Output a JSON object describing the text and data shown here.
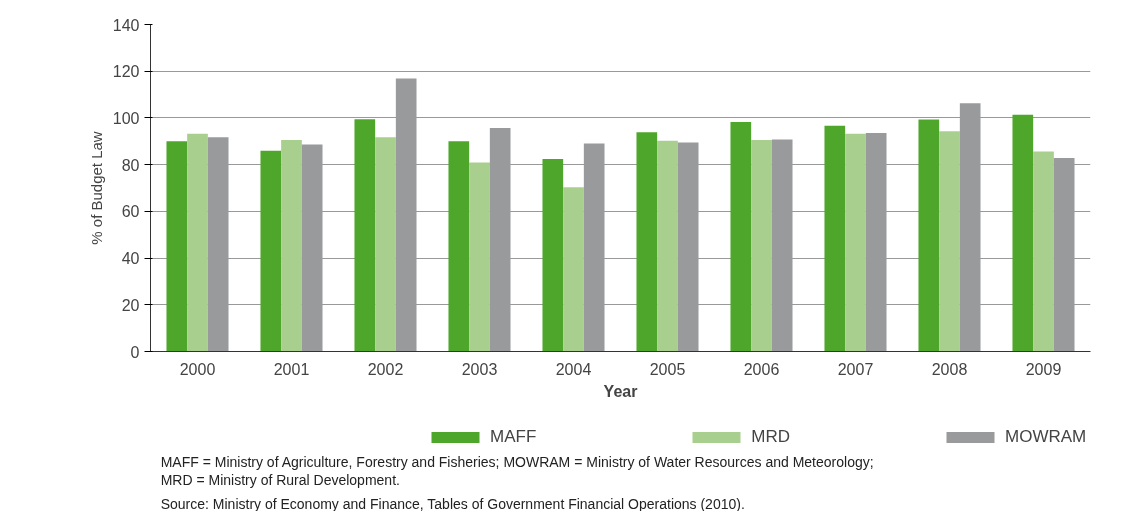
{
  "chart_data": {
    "type": "bar",
    "xlabel": "Year",
    "ylabel": "% of Budget Law",
    "categories": [
      "2000",
      "2001",
      "2002",
      "2003",
      "2004",
      "2005",
      "2006",
      "2007",
      "2008",
      "2009"
    ],
    "series": [
      {
        "name": "MAFF",
        "color": "#4ea72a",
        "values": [
          90,
          86,
          99.4,
          90,
          82.4,
          93.9,
          98.3,
          96.6,
          99.3,
          101.4
        ]
      },
      {
        "name": "MRD",
        "color": "#a8cf8e",
        "values": [
          93.2,
          90.5,
          91.7,
          80.9,
          70.3,
          90.2,
          90.6,
          93.2,
          94.3,
          85.6
        ]
      },
      {
        "name": "MOWRAM",
        "color": "#999a9c",
        "values": [
          91.7,
          88.6,
          116.9,
          95.7,
          89,
          89.5,
          90.8,
          93.5,
          106.3,
          82.8
        ]
      }
    ],
    "ylim": [
      0,
      140
    ],
    "yticks": [
      0,
      20,
      40,
      60,
      80,
      100,
      120,
      140
    ],
    "grid": "y",
    "legend": "bottom",
    "annotations": [
      "MAFF = Ministry of Agriculture, Forestry and Fisheries; MOWRAM = Ministry of Water Resources and Meteorology;",
      "MRD = Ministry of Rural Development.",
      "Source:  Ministry of Economy and Finance, Tables of Government Financial Operations (2010)."
    ]
  }
}
